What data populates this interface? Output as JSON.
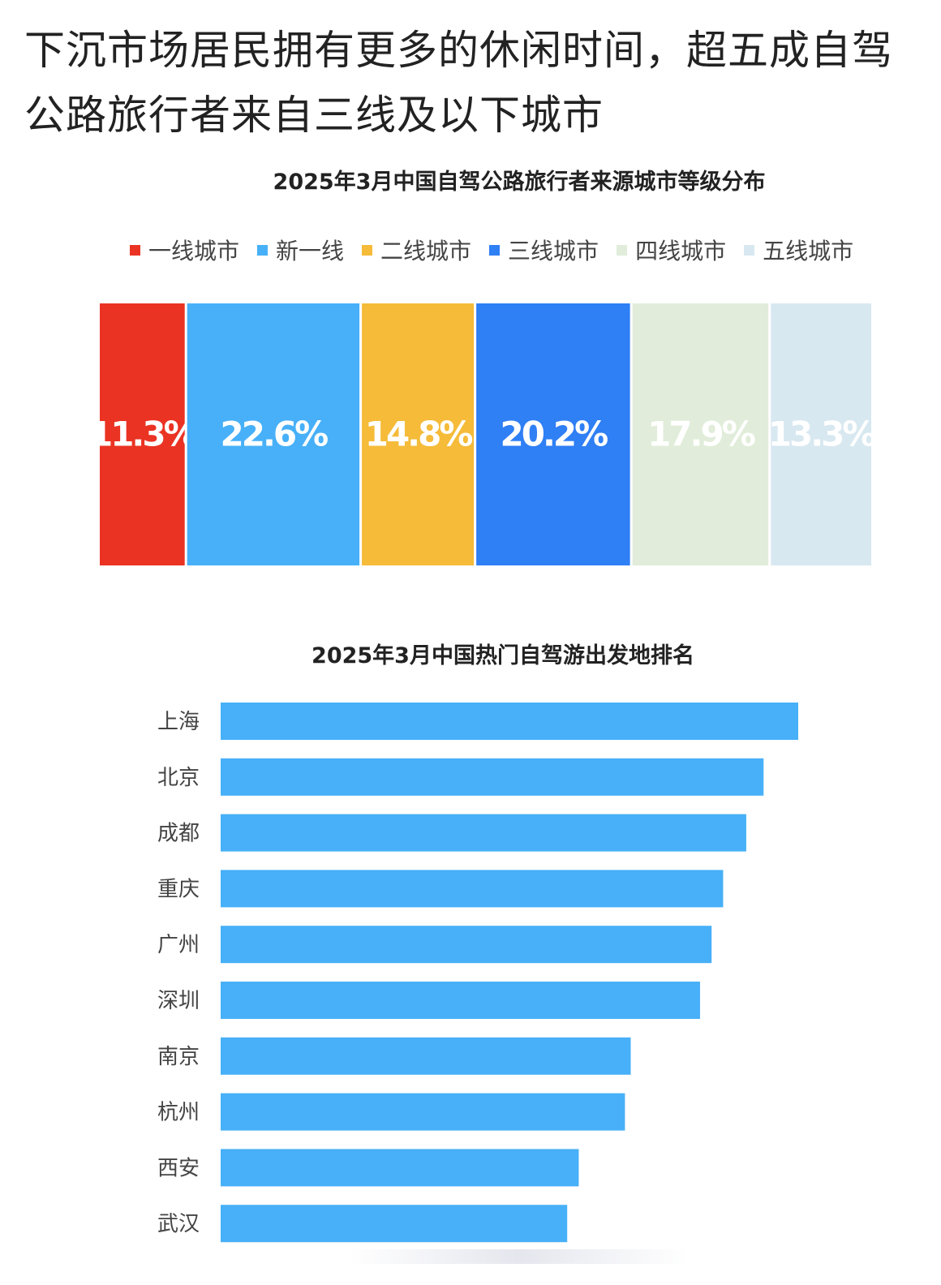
{
  "headline": "下沉市场居民拥有更多的休闲时间，超五成自驾公路旅行者来自三线及以下城市",
  "chart_data": [
    {
      "type": "bar",
      "subtype": "stacked-100",
      "title": "2025年3月中国自驾公路旅行者来源城市等级分布",
      "legend_position": "top",
      "series": [
        {
          "name": "一线城市",
          "value": 11.3,
          "label": "11.3%",
          "color": "#EA3323",
          "label_color": "#FFFFFF"
        },
        {
          "name": "新一线",
          "value": 22.6,
          "label": "22.6%",
          "color": "#47B0F8",
          "label_color": "#FFFFFF"
        },
        {
          "name": "二线城市",
          "value": 14.8,
          "label": "14.8%",
          "color": "#F5BB39",
          "label_color": "#FFFFFF"
        },
        {
          "name": "三线城市",
          "value": 20.2,
          "label": "20.2%",
          "color": "#2F7FF5",
          "label_color": "#FFFFFF"
        },
        {
          "name": "四线城市",
          "value": 17.9,
          "label": "17.9%",
          "color": "#E1EDDA",
          "label_color": "#FFFFFF"
        },
        {
          "name": "五线城市",
          "value": 13.3,
          "label": "13.3%",
          "color": "#D8E8F0",
          "label_color": "#FFFFFF"
        }
      ]
    },
    {
      "type": "bar",
      "orientation": "horizontal",
      "title": "2025年3月中国热门自驾游出发地排名",
      "color": "#47B0F8",
      "xlim": [
        0,
        100
      ],
      "categories": [
        "上海",
        "北京",
        "成都",
        "重庆",
        "广州",
        "深圳",
        "南京",
        "杭州",
        "西安",
        "武汉"
      ],
      "values": [
        100,
        94,
        91,
        87,
        85,
        83,
        71,
        70,
        62,
        60
      ]
    }
  ]
}
